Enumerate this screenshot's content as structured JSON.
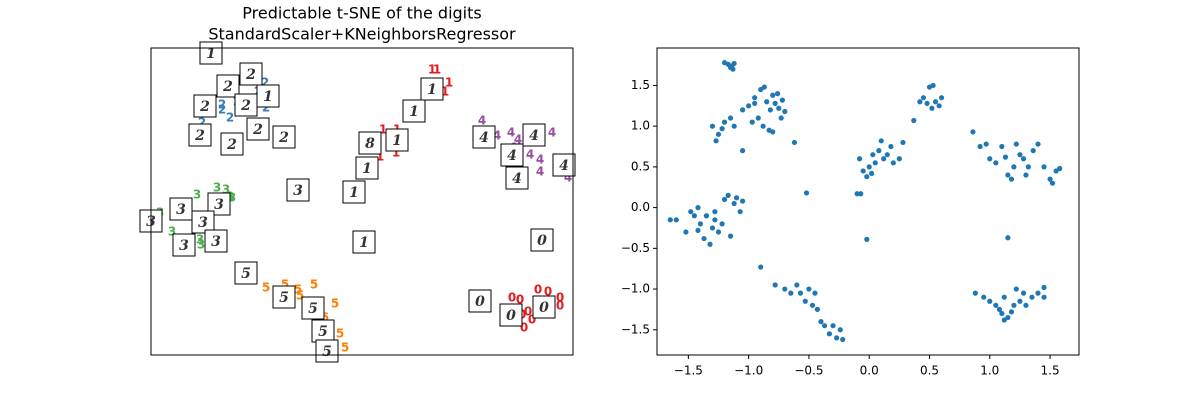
{
  "chart_data": [
    {
      "type": "text-scatter",
      "title": "Predictable t-SNE of the digits",
      "subtitle": "StandardScaler+KNeighborsRegressor",
      "xlim": [
        0,
        422
      ],
      "ylim": [
        0,
        307
      ],
      "series": [
        {
          "label": "0",
          "color": "#e41a1c",
          "x": [
            397,
            387,
            409,
            369,
            361,
            377,
            381,
            373,
            371,
            409
          ],
          "y": [
            63,
            65,
            57,
            55,
            57,
            43,
            35,
            27,
            40,
            49
          ]
        },
        {
          "label": "1",
          "color": "#e41a1c",
          "x": [
            286,
            281,
            298,
            294,
            232,
            246,
            221,
            245,
            229,
            223
          ],
          "y": [
            285,
            285,
            272,
            263,
            225,
            225,
            205,
            202,
            198,
            210
          ]
        },
        {
          "label": "2",
          "color": "#377eb8",
          "x": [
            67,
            76,
            114,
            107,
            71,
            61,
            79,
            51,
            86,
            95,
            115,
            71
          ],
          "y": [
            295,
            273,
            272,
            263,
            250,
            243,
            237,
            232,
            253,
            245,
            247,
            245
          ]
        },
        {
          "label": "3",
          "color": "#4daf4a",
          "x": [
            46,
            66,
            75,
            81,
            9,
            29,
            21,
            49,
            57,
            50,
            79
          ],
          "y": [
            160,
            167,
            165,
            157,
            142,
            143,
            123,
            115,
            123,
            110,
            158
          ]
        },
        {
          "label": "4",
          "color": "#984ea3",
          "x": [
            331,
            346,
            360,
            367,
            369,
            379,
            401,
            389,
            389,
            420,
            417,
            379,
            362
          ],
          "y": [
            234,
            219,
            222,
            215,
            205,
            200,
            222,
            195,
            183,
            193,
            177,
            225,
            207
          ]
        },
        {
          "label": "5",
          "color": "#ff7f00",
          "x": [
            115,
            134,
            147,
            163,
            184,
            155,
            174,
            189,
            194,
            149,
            169,
            178
          ],
          "y": [
            67,
            70,
            65,
            70,
            51,
            50,
            37,
            21,
            7,
            59,
            10,
            24
          ]
        }
      ],
      "thumbnails": {
        "labels": [
          "1",
          "2",
          "2",
          "1",
          "2",
          "2",
          "2",
          "2",
          "2",
          "2",
          "1",
          "1",
          "8",
          "1",
          "1",
          "1",
          "3",
          "1",
          "4",
          "4",
          "4",
          "4",
          "4",
          "0",
          "3",
          "3",
          "3",
          "3",
          "3",
          "3",
          "5",
          "5",
          "5",
          "5",
          "5",
          "0",
          "0",
          "0"
        ],
        "x": [
          60,
          77,
          100,
          117,
          54,
          95,
          49,
          81,
          107,
          133,
          281,
          263,
          219,
          246,
          216,
          203,
          147,
          213,
          333,
          383,
          361,
          413,
          366,
          391,
          30,
          68,
          0,
          52,
          65,
          33,
          95,
          133,
          162,
          172,
          176,
          329,
          360,
          393
        ],
        "y": [
          302,
          269,
          281,
          259,
          249,
          250,
          220,
          211,
          226,
          218,
          266,
          244,
          212,
          215,
          187,
          163,
          165,
          113,
          218,
          220,
          200,
          190,
          177,
          115,
          146,
          151,
          134,
          133,
          114,
          110,
          82,
          58,
          47,
          24,
          4,
          54,
          40,
          48
        ]
      }
    },
    {
      "type": "scatter",
      "color": "#1f77b4",
      "xlim": [
        -1.76,
        1.74
      ],
      "ylim": [
        -1.81,
        1.96
      ],
      "xticks": [
        {
          "value": -1.5,
          "label": "−1.5"
        },
        {
          "value": -1.0,
          "label": "−1.0"
        },
        {
          "value": -0.5,
          "label": "−0.5"
        },
        {
          "value": 0,
          "label": "0.0"
        },
        0.5,
        {
          "value": 1.0,
          "label": "1.0"
        },
        1.5
      ],
      "yticks": [
        {
          "value": -1.5,
          "label": "−1.5"
        },
        {
          "value": -1.0,
          "label": "−1.0"
        },
        {
          "value": -0.5,
          "label": "−0.5"
        },
        {
          "value": 0,
          "label": "0.0"
        },
        0.5,
        {
          "value": 1.0,
          "label": "1.0"
        },
        1.5
      ],
      "x": [
        -1.2,
        -1.17,
        -1.14,
        -1.12,
        -1.15,
        -1.13,
        -1.0,
        -0.95,
        -0.9,
        -0.87,
        -0.85,
        -0.82,
        -0.8,
        -0.78,
        -0.75,
        -0.72,
        -0.7,
        -0.73,
        -0.92,
        -0.88,
        -0.97,
        -0.83,
        -1.05,
        -0.8,
        -0.76,
        -0.95,
        -1.3,
        -1.25,
        -1.2,
        -1.15,
        -1.12,
        -1.27,
        -1.22,
        -1.05,
        -0.62,
        0.37,
        0.42,
        0.45,
        0.5,
        0.53,
        0.55,
        0.58,
        0.6,
        0.48,
        0.52,
        -0.08,
        -0.05,
        0.0,
        0.03,
        0.05,
        0.08,
        0.1,
        0.12,
        0.15,
        0.18,
        0.2,
        0.25,
        0.28,
        -0.02,
        0.02,
        -0.1,
        0.86,
        0.92,
        0.97,
        1.0,
        1.05,
        1.1,
        1.13,
        1.15,
        1.18,
        1.2,
        1.22,
        1.25,
        1.28,
        1.3,
        1.32,
        1.36,
        1.4,
        1.45,
        1.5,
        1.52,
        1.55,
        1.58,
        -1.65,
        -1.6,
        -1.52,
        -1.48,
        -1.45,
        -1.42,
        -1.4,
        -1.37,
        -1.35,
        -1.32,
        -1.3,
        -1.28,
        -1.25,
        -1.22,
        -1.2,
        -1.17,
        -1.15,
        -1.12,
        -1.1,
        -1.07,
        -1.05,
        -1.28,
        -1.42,
        -0.9,
        -0.78,
        -0.7,
        -0.65,
        -0.6,
        -0.57,
        -0.53,
        -0.5,
        -0.47,
        -0.43,
        -0.4,
        -0.37,
        -0.33,
        -0.3,
        -0.27,
        -0.24,
        -0.22,
        -0.45,
        -0.52,
        -0.02,
        -0.07,
        0.88,
        0.95,
        1.0,
        1.05,
        1.08,
        1.1,
        1.12,
        1.15,
        1.18,
        1.2,
        1.22,
        1.25,
        1.28,
        1.3,
        1.35,
        1.4,
        1.45,
        1.45,
        1.15,
        1.12
      ],
      "y": [
        1.78,
        1.76,
        1.74,
        1.77,
        1.72,
        1.7,
        1.25,
        1.35,
        1.45,
        1.48,
        1.3,
        1.2,
        1.38,
        1.28,
        1.22,
        1.32,
        1.18,
        1.1,
        1.1,
        1.0,
        1.05,
        0.95,
        1.2,
        0.93,
        1.4,
        1.28,
        1.0,
        0.9,
        1.05,
        1.1,
        1.0,
        0.82,
        0.97,
        0.7,
        0.8,
        1.07,
        1.3,
        1.35,
        1.48,
        1.5,
        1.3,
        1.25,
        1.35,
        1.28,
        1.22,
        0.6,
        0.45,
        0.5,
        0.65,
        0.55,
        0.7,
        0.82,
        0.6,
        0.65,
        0.75,
        0.55,
        0.6,
        0.8,
        0.38,
        0.42,
        0.17,
        0.93,
        0.75,
        0.78,
        0.6,
        0.55,
        0.75,
        0.62,
        0.4,
        0.35,
        0.5,
        0.78,
        0.65,
        0.6,
        0.4,
        0.5,
        0.7,
        0.78,
        0.5,
        0.35,
        0.3,
        0.45,
        0.48,
        -0.15,
        -0.15,
        -0.3,
        -0.05,
        -0.1,
        0.0,
        -0.2,
        -0.38,
        -0.1,
        -0.45,
        -0.25,
        -0.15,
        -0.3,
        -0.2,
        0.1,
        0.15,
        -0.35,
        0.05,
        0.12,
        -0.05,
        0.08,
        -0.05,
        -0.28,
        -0.73,
        -0.95,
        -1.0,
        -1.05,
        -0.95,
        -1.05,
        -1.15,
        -1.0,
        -1.2,
        -1.25,
        -1.4,
        -1.45,
        -1.55,
        -1.45,
        -1.6,
        -1.5,
        -1.62,
        -1.05,
        0.18,
        -0.39,
        0.17,
        -1.05,
        -1.1,
        -1.15,
        -1.2,
        -1.25,
        -1.3,
        -1.1,
        -1.35,
        -1.28,
        -1.2,
        -1.0,
        -1.15,
        -1.05,
        -1.2,
        -1.1,
        -1.05,
        -1.1,
        -0.98,
        -0.37,
        -1.38
      ]
    }
  ]
}
